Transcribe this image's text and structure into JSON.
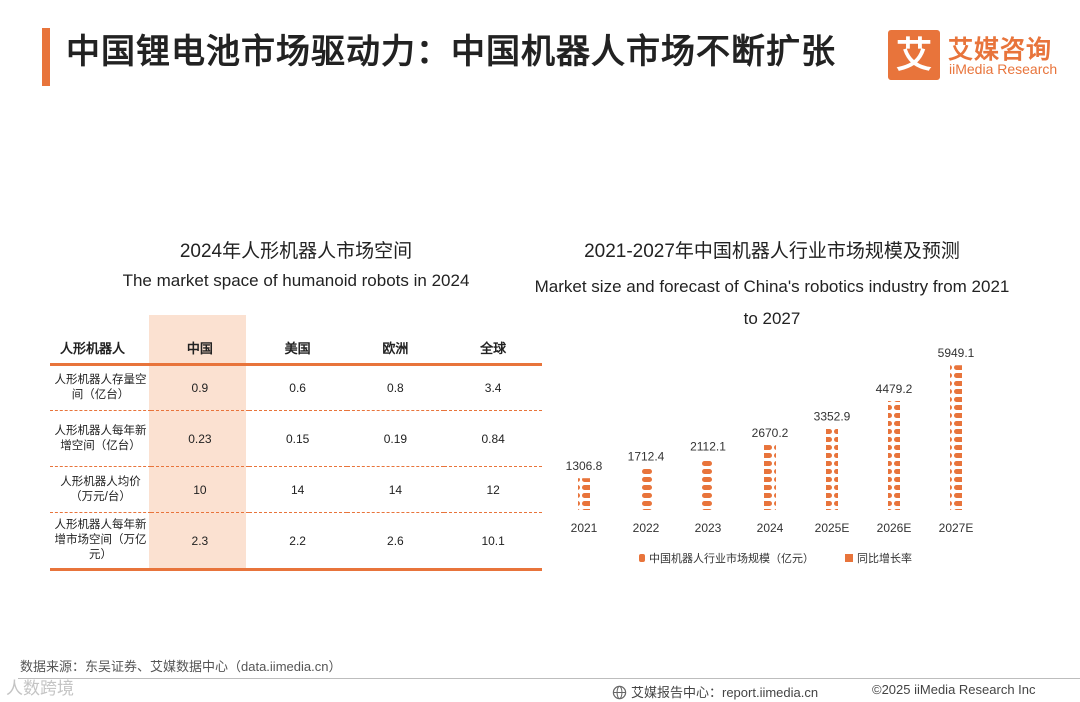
{
  "header": {
    "title": "中国锂电池市场驱动力：中国机器人市场不断扩张",
    "logo_cn": "艾媒咨询",
    "logo_en": "iiMedia Research",
    "logo_mark": "艾"
  },
  "left_panel": {
    "title_cn": "2024年人形机器人市场空间",
    "title_en": "The market space of humanoid robots in 2024",
    "table": {
      "headers": [
        "人形机器人",
        "中国",
        "美国",
        "欧洲",
        "全球"
      ],
      "rows": [
        {
          "label": "人形机器人存量空间（亿台）",
          "values": [
            "0.9",
            "0.6",
            "0.8",
            "3.4"
          ]
        },
        {
          "label": "人形机器人每年新增空间（亿台）",
          "values": [
            "0.23",
            "0.15",
            "0.19",
            "0.84"
          ]
        },
        {
          "label": "人形机器人均价（万元/台）",
          "values": [
            "10",
            "14",
            "14",
            "12"
          ]
        },
        {
          "label": "人形机器人每年新增市场空间（万亿元）",
          "values": [
            "2.3",
            "2.2",
            "2.6",
            "10.1"
          ]
        }
      ]
    }
  },
  "right_panel": {
    "title_cn": "2021-2027年中国机器人行业市场规模及预测",
    "title_en": "Market size and forecast of China's robotics industry from 2021 to 2027"
  },
  "chart_data": {
    "type": "bar",
    "title": "2021-2027年中国机器人行业市场规模及预测",
    "categories": [
      "2021",
      "2022",
      "2023",
      "2024",
      "2025E",
      "2026E",
      "2027E"
    ],
    "series": [
      {
        "name": "中国机器人行业市场规模（亿元）",
        "values": [
          1306.8,
          1712.4,
          2112.1,
          2670.2,
          3352.9,
          4479.2,
          5949.1
        ]
      }
    ],
    "legend": [
      "中国机器人行业市场规模（亿元）",
      "同比增长率"
    ],
    "ylim": [
      0,
      6000
    ],
    "color": "#e8743b"
  },
  "footer": {
    "source": "数据来源：东吴证券、艾媒数据中心（data.iimedia.cn）",
    "report": "艾媒报告中心：report.iimedia.cn",
    "copyright": "©2025  iiMedia Research  Inc",
    "watermark": "人数跨境"
  }
}
